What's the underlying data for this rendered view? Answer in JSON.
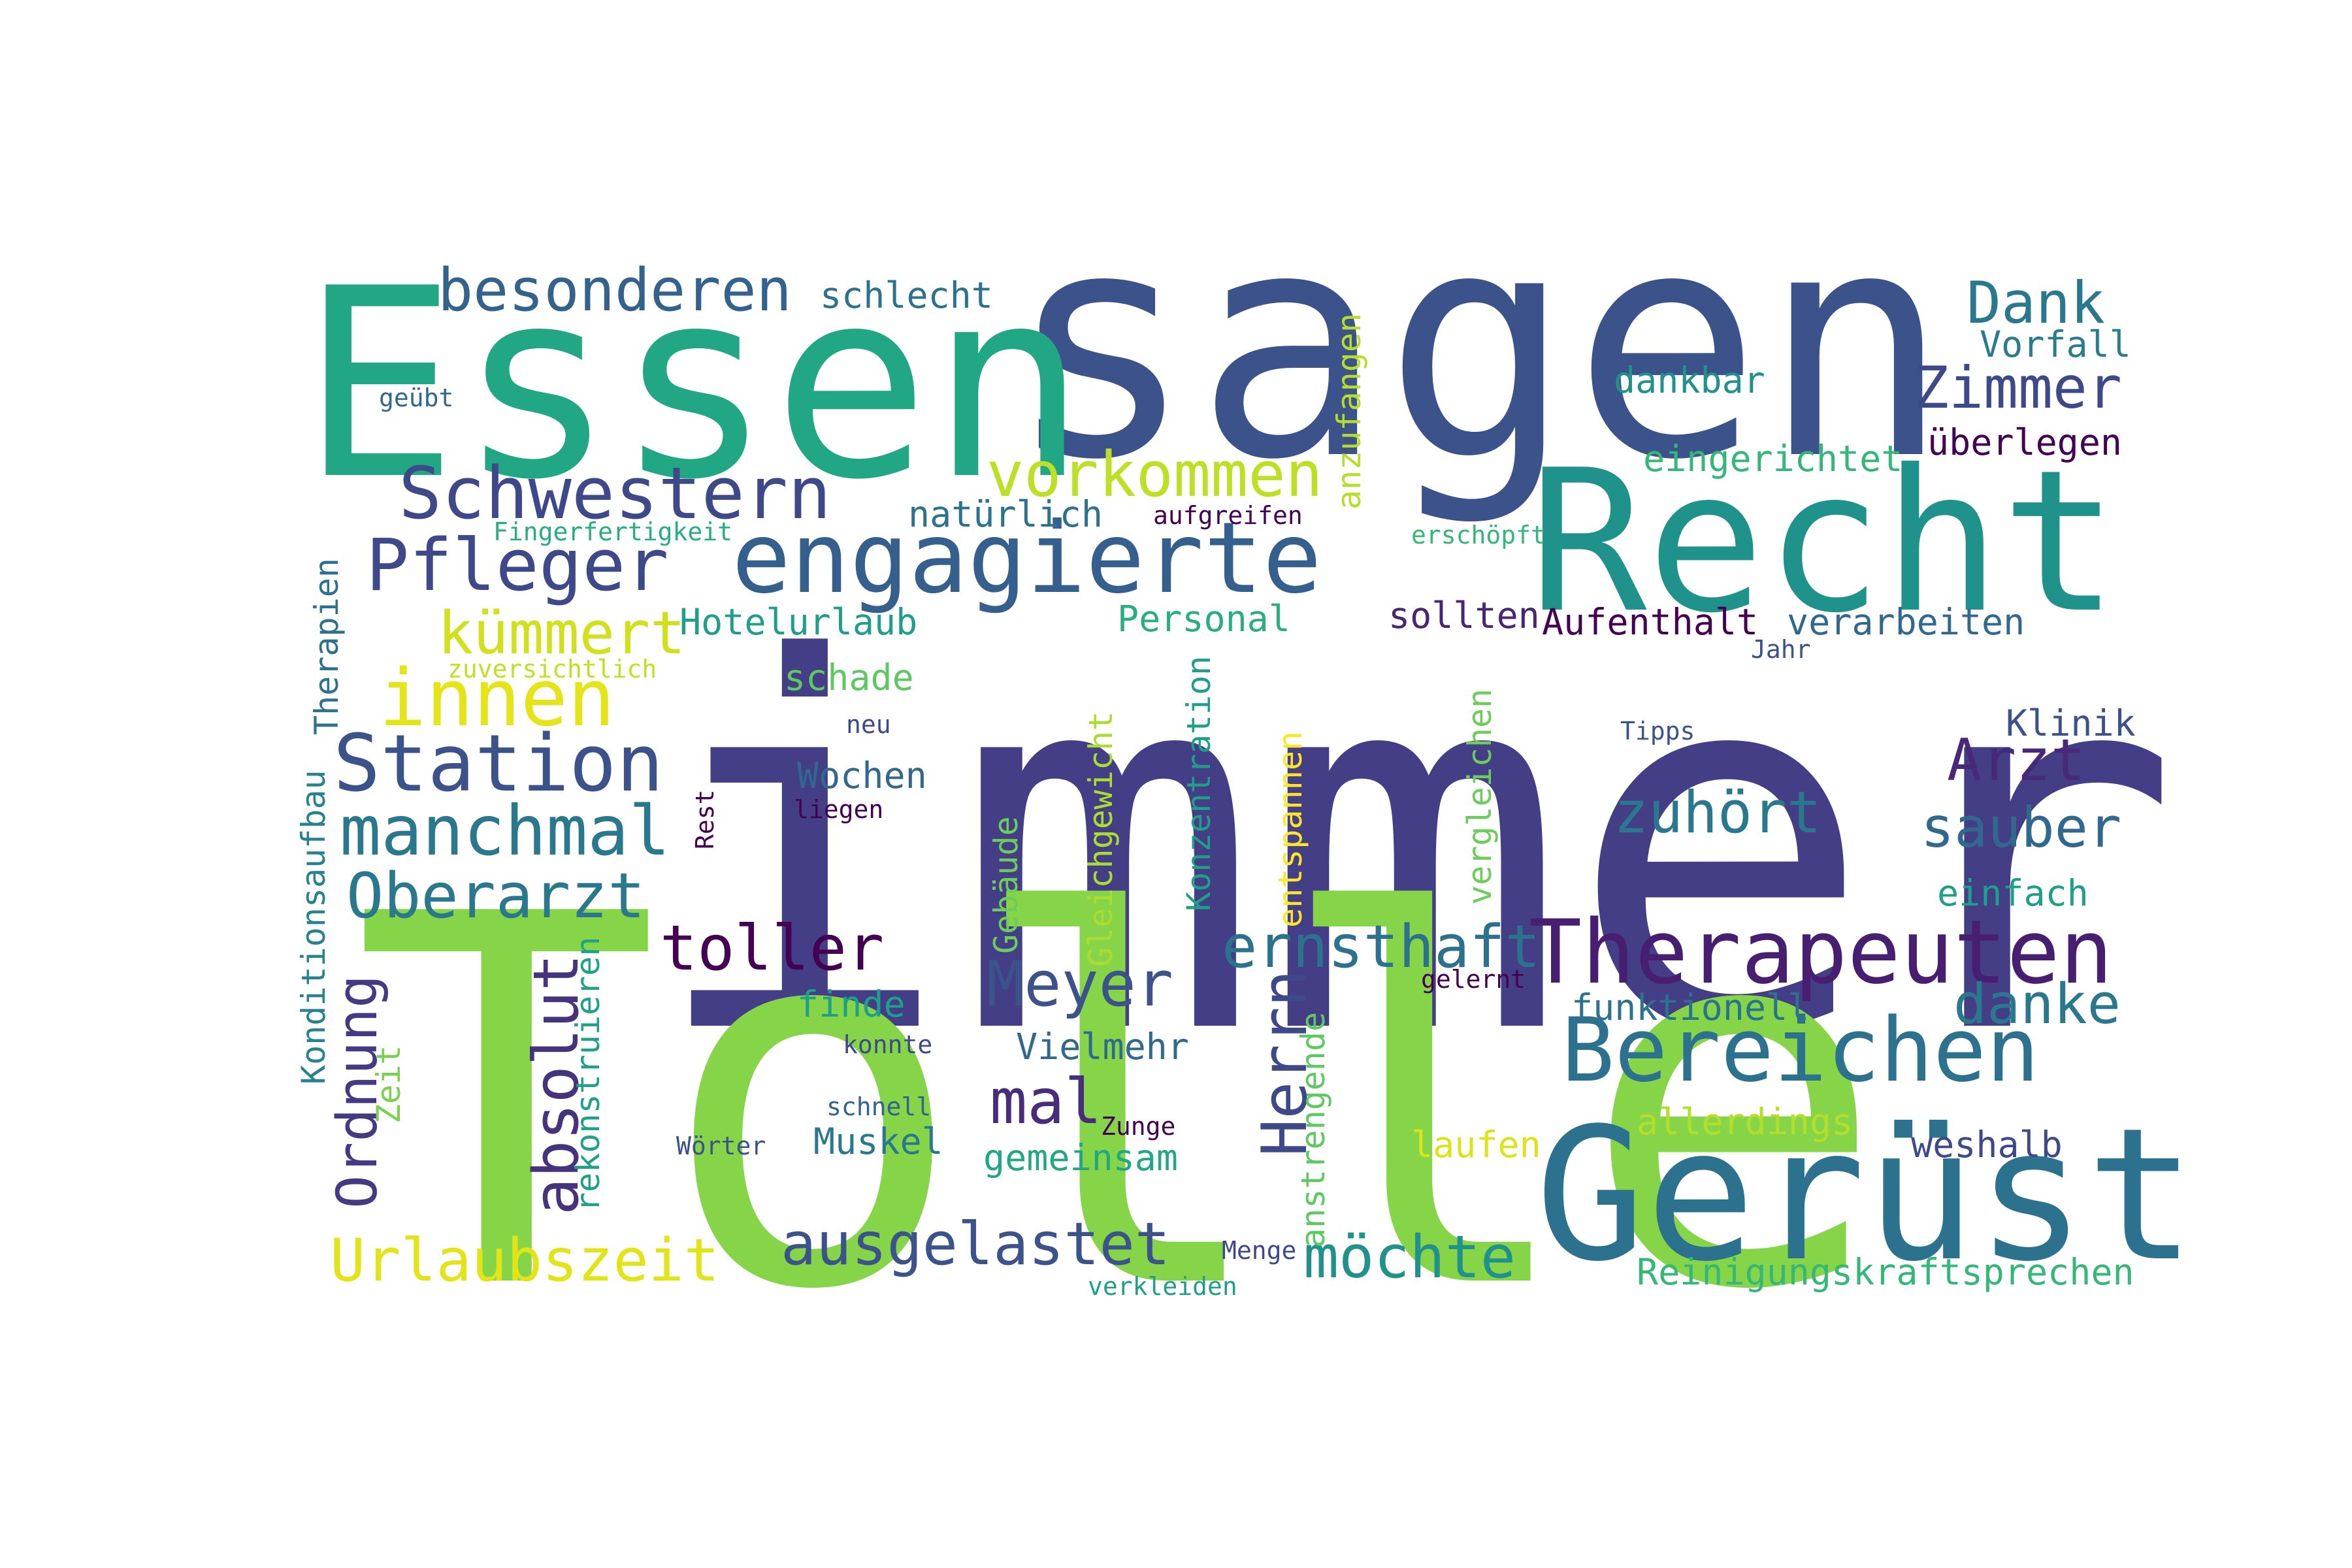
{
  "words": [
    {
      "text": "immer",
      "color": "#433e85"
    },
    {
      "text": "Tolle",
      "color": "#86d549"
    },
    {
      "text": "sagen",
      "color": "#3b528b"
    },
    {
      "text": "Essen",
      "color": "#22a785"
    },
    {
      "text": "Recht",
      "color": "#20928c"
    },
    {
      "text": "Gerüst",
      "color": "#2c728e"
    },
    {
      "text": "engagierte",
      "color": "#355f8d"
    },
    {
      "text": "Therapeuten",
      "color": "#481f70"
    },
    {
      "text": "Bereichen",
      "color": "#2c728e"
    },
    {
      "text": "innen",
      "color": "#e5e419"
    },
    {
      "text": "Station",
      "color": "#3b528b"
    },
    {
      "text": "Pfleger",
      "color": "#3e4989"
    },
    {
      "text": "Schwestern",
      "color": "#3e4989"
    },
    {
      "text": "besonderen",
      "color": "#33638d"
    },
    {
      "text": "manchmal",
      "color": "#2a788e"
    },
    {
      "text": "vorkommen",
      "color": "#bddf26"
    },
    {
      "text": "Oberarzt",
      "color": "#2a788e"
    },
    {
      "text": "toller",
      "color": "#440154"
    },
    {
      "text": "ernsthaft",
      "color": "#2c728e"
    },
    {
      "text": "Meyer",
      "color": "#3b528b"
    },
    {
      "text": "kümmert",
      "color": "#d0e11c"
    },
    {
      "text": "Urlaubszeit",
      "color": "#e2e418"
    },
    {
      "text": "ausgelastet",
      "color": "#3b528b"
    },
    {
      "text": "möchte",
      "color": "#21918c"
    },
    {
      "text": "Dank",
      "color": "#2a788e"
    },
    {
      "text": "Zimmer",
      "color": "#3e4989"
    },
    {
      "text": "Arzt",
      "color": "#482878"
    },
    {
      "text": "zuhört",
      "color": "#2a788e"
    },
    {
      "text": "sauber",
      "color": "#31688e"
    },
    {
      "text": "danke",
      "color": "#2a788e"
    },
    {
      "text": "mal",
      "color": "#472d7b"
    },
    {
      "text": "Herrn",
      "color": "#3e4989"
    },
    {
      "text": "absolut",
      "color": "#46337e"
    },
    {
      "text": "Ordnung",
      "color": "#443983"
    },
    {
      "text": "schlecht",
      "color": "#2c728e"
    },
    {
      "text": "Vorfall",
      "color": "#287c8e"
    },
    {
      "text": "dankbar",
      "color": "#21918c"
    },
    {
      "text": "überlegen",
      "color": "#440154"
    },
    {
      "text": "eingerichtet",
      "color": "#35b779"
    },
    {
      "text": "natürlich",
      "color": "#2c728e"
    },
    {
      "text": "Hotelurlaub",
      "color": "#1f9e89"
    },
    {
      "text": "Personal",
      "color": "#28ae80"
    },
    {
      "text": "sollten",
      "color": "#482475"
    },
    {
      "text": "Aufenthalt",
      "color": "#440154"
    },
    {
      "text": "verarbeiten",
      "color": "#31688e"
    },
    {
      "text": "schade",
      "color": "#5ec962"
    },
    {
      "text": "Wochen",
      "color": "#31688e"
    },
    {
      "text": "Klinik",
      "color": "#3b528b"
    },
    {
      "text": "einfach",
      "color": "#1f9e89"
    },
    {
      "text": "finde",
      "color": "#1f9e89"
    },
    {
      "text": "Vielmehr",
      "color": "#31688e"
    },
    {
      "text": "funktionell",
      "color": "#2c728e"
    },
    {
      "text": "Muskel",
      "color": "#2a788e"
    },
    {
      "text": "gemeinsam",
      "color": "#22a785"
    },
    {
      "text": "allerdings",
      "color": "#b5de2b"
    },
    {
      "text": "weshalb",
      "color": "#3e4989"
    },
    {
      "text": "laufen",
      "color": "#dde318"
    },
    {
      "text": "Reinigungskraftsprechen",
      "color": "#35b779"
    },
    {
      "text": "anzufangen",
      "color": "#b5de2b"
    },
    {
      "text": "Therapien",
      "color": "#2c728e"
    },
    {
      "text": "Konditionsaufbau",
      "color": "#26828e"
    },
    {
      "text": "Zeit",
      "color": "#7ad151"
    },
    {
      "text": "rekonstruieren",
      "color": "#1fa188"
    },
    {
      "text": "Gebäude",
      "color": "#6ccd5a"
    },
    {
      "text": "Gleichgewicht",
      "color": "#addc30"
    },
    {
      "text": "Konzentration",
      "color": "#1f9e89"
    },
    {
      "text": "entspannen",
      "color": "#fde725"
    },
    {
      "text": "vergleichen",
      "color": "#6ccd5a"
    },
    {
      "text": "anstrengende",
      "color": "#5ec962"
    },
    {
      "text": "Rest",
      "color": "#440154"
    },
    {
      "text": "geübt",
      "color": "#31688e"
    },
    {
      "text": "Fingerfertigkeit",
      "color": "#26ad81"
    },
    {
      "text": "zuversichtlich",
      "color": "#c2df23"
    },
    {
      "text": "aufgreifen",
      "color": "#440154"
    },
    {
      "text": "erschöpft",
      "color": "#35b779"
    },
    {
      "text": "Jahr",
      "color": "#3b528b"
    },
    {
      "text": "neu",
      "color": "#3e4989"
    },
    {
      "text": "liegen",
      "color": "#440154"
    },
    {
      "text": "Tipps",
      "color": "#3b528b"
    },
    {
      "text": "gelernt",
      "color": "#440154"
    },
    {
      "text": "konnte",
      "color": "#3e4989"
    },
    {
      "text": "schnell",
      "color": "#33638d"
    },
    {
      "text": "Zunge",
      "color": "#440154"
    },
    {
      "text": "Wörter",
      "color": "#3b528b"
    },
    {
      "text": "Menge",
      "color": "#3e4989"
    },
    {
      "text": "verkleiden",
      "color": "#1f9e89"
    }
  ]
}
